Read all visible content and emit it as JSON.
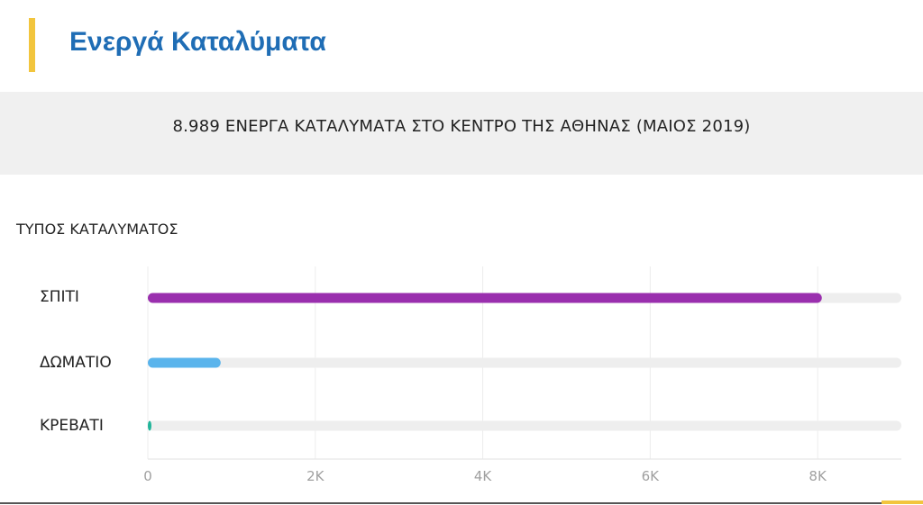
{
  "header": {
    "title": "Ενεργά Καταλύματα"
  },
  "banner": {
    "text": "8.989 ΕΝΕΡΓΑ ΚΑΤΑΛΥΜΑΤΑ ΣΤΟ ΚΕΝΤΡΟ ΤΗΣ ΑΘΗΝΑΣ (ΜΑΙΟΣ 2019)"
  },
  "chart_data": {
    "type": "bar",
    "orientation": "horizontal",
    "title": "ΤΥΠΟΣ ΚΑΤΑΛΥΜΑΤΟΣ",
    "categories": [
      "ΣΠΙΤΙ",
      "ΔΩΜΑΤΙΟ",
      "ΚΡΕΒΑΤΙ"
    ],
    "values": [
      8050,
      870,
      35
    ],
    "xlim": [
      0,
      9000
    ],
    "xticks": [
      0,
      2000,
      4000,
      6000,
      8000
    ],
    "xtick_labels": [
      "0",
      "2K",
      "4K",
      "6K",
      "8K"
    ],
    "grid": true,
    "colors": [
      "#9a2fae",
      "#5ab4ec",
      "#22b59a"
    ],
    "track_color": "#eeeeee"
  }
}
